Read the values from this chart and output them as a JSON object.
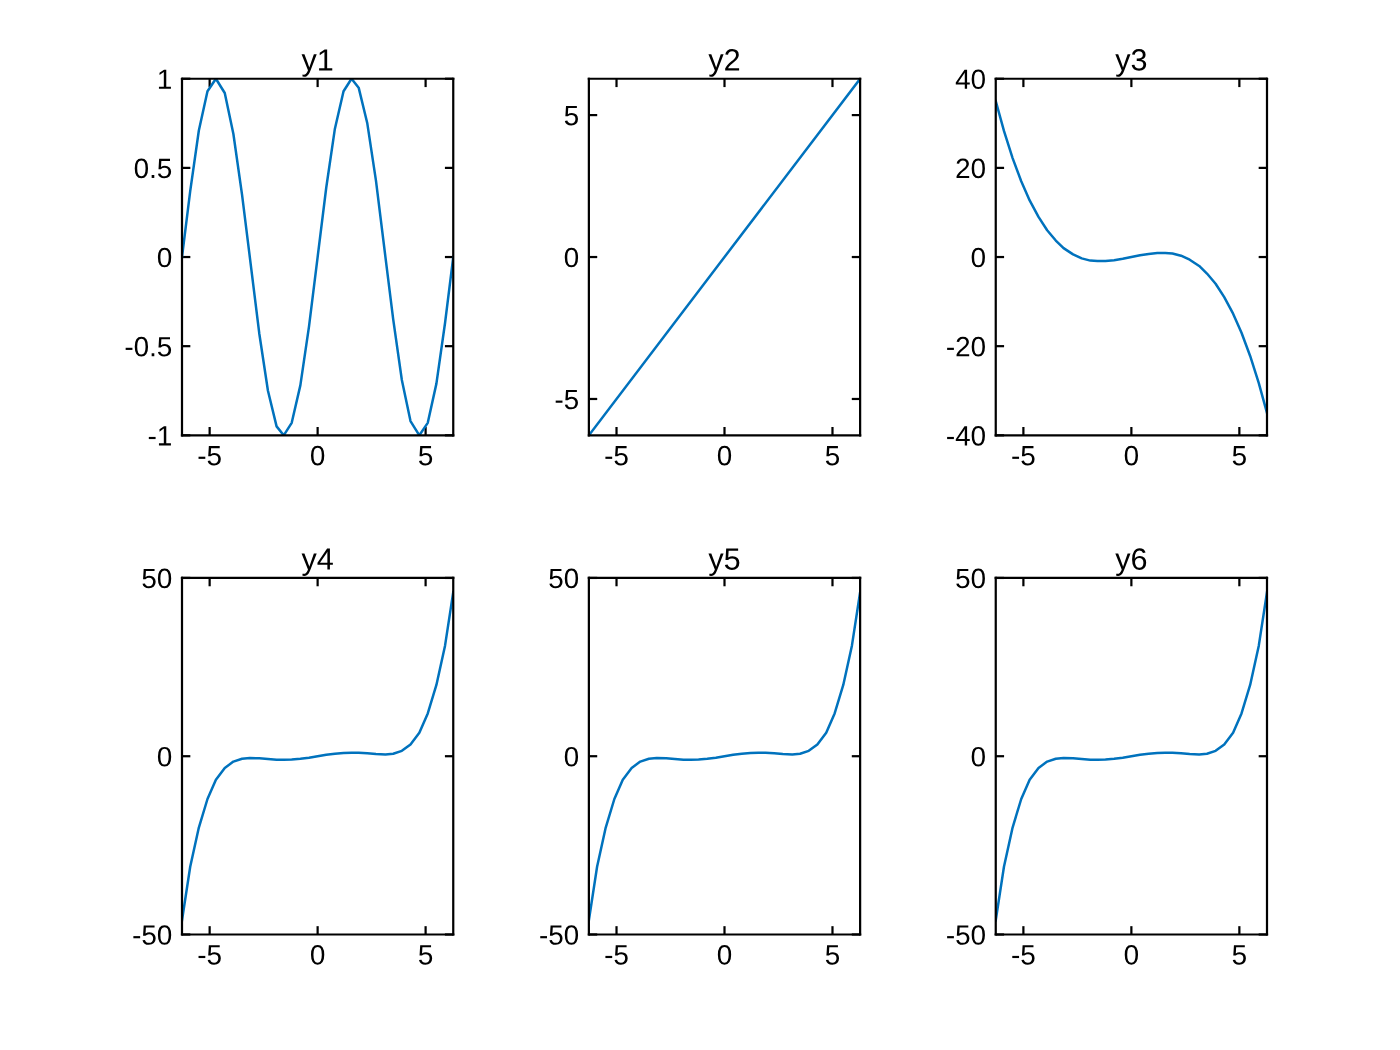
{
  "chart_data": [
    {
      "type": "line",
      "title": "y1",
      "color": "#0072bd",
      "xlim": [
        -6.28,
        6.28
      ],
      "xticks": [
        -5,
        0,
        5
      ],
      "ylim": [
        -1,
        1
      ],
      "yticks": [
        -1,
        -0.5,
        0,
        0.5,
        1
      ],
      "x": [
        -6.28,
        -5.9,
        -5.5,
        -5.1,
        -4.71,
        -4.3,
        -3.9,
        -3.5,
        -3.14,
        -2.7,
        -2.3,
        -1.9,
        -1.57,
        -1.2,
        -0.8,
        -0.4,
        0,
        0.4,
        0.8,
        1.2,
        1.57,
        1.9,
        2.3,
        2.7,
        3.14,
        3.5,
        3.9,
        4.3,
        4.71,
        5.1,
        5.5,
        5.9,
        6.28
      ],
      "values": [
        0,
        0.37,
        0.71,
        0.93,
        1,
        0.92,
        0.69,
        0.35,
        0,
        -0.43,
        -0.75,
        -0.95,
        -1,
        -0.93,
        -0.72,
        -0.39,
        0,
        0.39,
        0.72,
        0.93,
        1,
        0.95,
        0.75,
        0.43,
        0,
        -0.35,
        -0.69,
        -0.92,
        -1,
        -0.93,
        -0.71,
        -0.37,
        0
      ]
    },
    {
      "type": "line",
      "title": "y2",
      "color": "#0072bd",
      "xlim": [
        -6.28,
        6.28
      ],
      "xticks": [
        -5,
        0,
        5
      ],
      "ylim": [
        -6.28,
        6.28
      ],
      "yticks": [
        -5,
        0,
        5
      ],
      "x": [
        -6.28,
        0,
        6.28
      ],
      "values": [
        -6.28,
        0,
        6.28
      ]
    },
    {
      "type": "line",
      "title": "y3",
      "color": "#0072bd",
      "xlim": [
        -6.28,
        6.28
      ],
      "xticks": [
        -5,
        0,
        5
      ],
      "ylim": [
        -40,
        40
      ],
      "yticks": [
        -40,
        -20,
        0,
        20,
        40
      ],
      "x": [
        -6.28,
        -5.9,
        -5.5,
        -5.1,
        -4.71,
        -4.3,
        -3.9,
        -3.5,
        -3.14,
        -2.7,
        -2.3,
        -1.9,
        -1.57,
        -1.2,
        -0.8,
        -0.4,
        0,
        0.4,
        0.8,
        1.2,
        1.57,
        1.9,
        2.3,
        2.7,
        3.14,
        3.5,
        3.9,
        4.3,
        4.71,
        5.1,
        5.5,
        5.9,
        6.28
      ],
      "values": [
        35,
        28.3,
        22.2,
        17,
        12.7,
        9,
        6,
        3.7,
        2,
        0.6,
        -0.3,
        -0.8,
        -0.9,
        -0.9,
        -0.7,
        -0.4,
        0,
        0.4,
        0.7,
        0.9,
        0.9,
        0.8,
        0.3,
        -0.6,
        -2,
        -3.7,
        -6,
        -9,
        -12.7,
        -17,
        -22.2,
        -28.3,
        -35
      ]
    },
    {
      "type": "line",
      "title": "y4",
      "color": "#0072bd",
      "xlim": [
        -6.28,
        6.28
      ],
      "xticks": [
        -5,
        0,
        5
      ],
      "ylim": [
        -50,
        50
      ],
      "yticks": [
        -50,
        0,
        50
      ],
      "x": [
        -6.28,
        -5.9,
        -5.5,
        -5.1,
        -4.71,
        -4.3,
        -3.9,
        -3.5,
        -3.14,
        -2.7,
        -2.3,
        -1.9,
        -1.57,
        -1.2,
        -0.8,
        -0.4,
        0,
        0.4,
        0.8,
        1.2,
        1.57,
        1.9,
        2.3,
        2.7,
        3.14,
        3.5,
        3.9,
        4.3,
        4.71,
        5.1,
        5.5,
        5.9,
        6.28
      ],
      "values": [
        -46,
        -31,
        -20,
        -12,
        -6.6,
        -3.3,
        -1.5,
        -0.7,
        -0.5,
        -0.6,
        -0.8,
        -1,
        -1,
        -0.9,
        -0.7,
        -0.4,
        0,
        0.4,
        0.7,
        0.9,
        1,
        1,
        0.8,
        0.6,
        0.5,
        0.7,
        1.5,
        3.3,
        6.6,
        12,
        20,
        31,
        46
      ]
    },
    {
      "type": "line",
      "title": "y5",
      "color": "#0072bd",
      "xlim": [
        -6.28,
        6.28
      ],
      "xticks": [
        -5,
        0,
        5
      ],
      "ylim": [
        -50,
        50
      ],
      "yticks": [
        -50,
        0,
        50
      ],
      "x": [
        -6.28,
        -5.9,
        -5.5,
        -5.1,
        -4.71,
        -4.3,
        -3.9,
        -3.5,
        -3.14,
        -2.7,
        -2.3,
        -1.9,
        -1.57,
        -1.2,
        -0.8,
        -0.4,
        0,
        0.4,
        0.8,
        1.2,
        1.57,
        1.9,
        2.3,
        2.7,
        3.14,
        3.5,
        3.9,
        4.3,
        4.71,
        5.1,
        5.5,
        5.9,
        6.28
      ],
      "values": [
        -46,
        -31,
        -20,
        -12,
        -6.6,
        -3.3,
        -1.5,
        -0.7,
        -0.5,
        -0.6,
        -0.8,
        -1,
        -1,
        -0.9,
        -0.7,
        -0.4,
        0,
        0.4,
        0.7,
        0.9,
        1,
        1,
        0.8,
        0.6,
        0.5,
        0.7,
        1.5,
        3.3,
        6.6,
        12,
        20,
        31,
        46
      ]
    },
    {
      "type": "line",
      "title": "y6",
      "color": "#0072bd",
      "xlim": [
        -6.28,
        6.28
      ],
      "xticks": [
        -5,
        0,
        5
      ],
      "ylim": [
        -50,
        50
      ],
      "yticks": [
        -50,
        0,
        50
      ],
      "x": [
        -6.28,
        -5.9,
        -5.5,
        -5.1,
        -4.71,
        -4.3,
        -3.9,
        -3.5,
        -3.14,
        -2.7,
        -2.3,
        -1.9,
        -1.57,
        -1.2,
        -0.8,
        -0.4,
        0,
        0.4,
        0.8,
        1.2,
        1.57,
        1.9,
        2.3,
        2.7,
        3.14,
        3.5,
        3.9,
        4.3,
        4.71,
        5.1,
        5.5,
        5.9,
        6.28
      ],
      "values": [
        -46,
        -31,
        -20,
        -12,
        -6.6,
        -3.3,
        -1.5,
        -0.7,
        -0.5,
        -0.6,
        -0.8,
        -1,
        -1,
        -0.9,
        -0.7,
        -0.4,
        0,
        0.4,
        0.7,
        0.9,
        1,
        1,
        0.8,
        0.6,
        0.5,
        0.7,
        1.5,
        3.3,
        6.6,
        12,
        20,
        31,
        46
      ]
    }
  ]
}
